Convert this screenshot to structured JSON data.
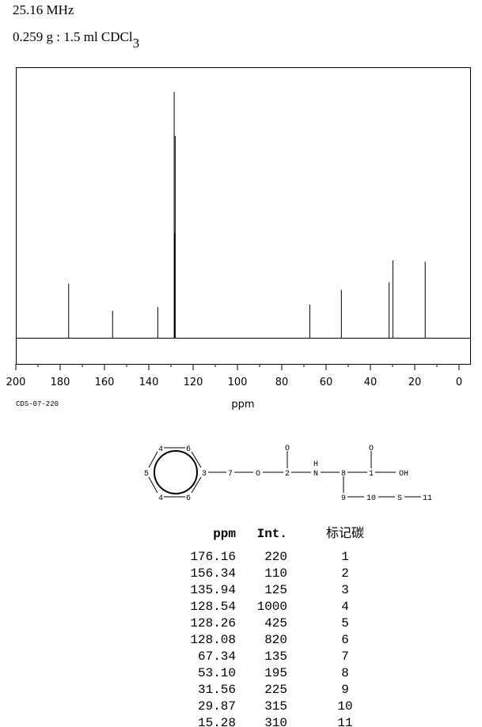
{
  "header": {
    "frequency": "25.16 MHz",
    "sample_text": "0.259 g : 1.5 ml CDCl",
    "sample_subscript": "3"
  },
  "chart_data": {
    "type": "stem",
    "x_label": "ppm",
    "code": "CDS-07-220",
    "x": [
      176.16,
      156.34,
      135.94,
      128.54,
      128.26,
      128.08,
      67.34,
      53.1,
      31.56,
      29.87,
      15.28
    ],
    "values": [
      220,
      110,
      125,
      1000,
      425,
      820,
      135,
      195,
      225,
      315,
      310
    ],
    "color": "#000000",
    "xlim": [
      200,
      -5
    ],
    "xticks": [
      200,
      180,
      160,
      140,
      120,
      100,
      80,
      60,
      40,
      20,
      0
    ],
    "minor_ticks": true,
    "ylim": [
      0,
      1100
    ]
  },
  "structure": {
    "nodes": [
      {
        "label": "4"
      },
      {
        "label": "6"
      },
      {
        "label": "5"
      },
      {
        "label": "3"
      },
      {
        "label": "4"
      },
      {
        "label": "6"
      },
      {
        "label": "7"
      },
      {
        "label": "O"
      },
      {
        "label": "2"
      },
      {
        "label": "O"
      },
      {
        "label": "H"
      },
      {
        "label": "N"
      },
      {
        "label": "8"
      },
      {
        "label": "1"
      },
      {
        "label": "O"
      },
      {
        "label": "OH"
      },
      {
        "label": "9"
      },
      {
        "label": "10"
      },
      {
        "label": "S"
      },
      {
        "label": "11"
      }
    ]
  },
  "table": {
    "header": [
      "ppm",
      "Int.",
      "标记碳"
    ],
    "rows": [
      [
        "176.16",
        "220",
        "1"
      ],
      [
        "156.34",
        "110",
        "2"
      ],
      [
        "135.94",
        "125",
        "3"
      ],
      [
        "128.54",
        "1000",
        "4"
      ],
      [
        "128.26",
        "425",
        "5"
      ],
      [
        "128.08",
        "820",
        "6"
      ],
      [
        "67.34",
        "135",
        "7"
      ],
      [
        "53.10",
        "195",
        "8"
      ],
      [
        "31.56",
        "225",
        "9"
      ],
      [
        "29.87",
        "315",
        "10"
      ],
      [
        "15.28",
        "310",
        "11"
      ]
    ]
  }
}
